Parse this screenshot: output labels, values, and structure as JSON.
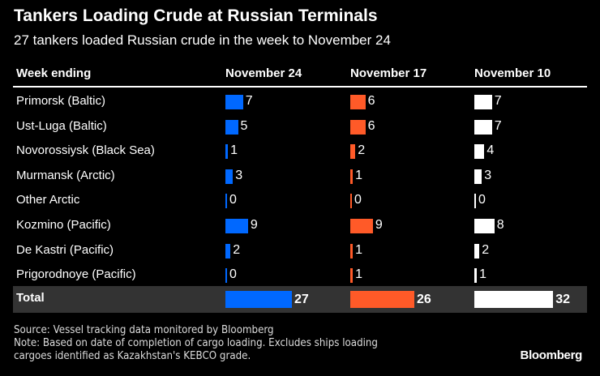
{
  "chart_data": {
    "type": "table",
    "title": "Tankers Loading Crude at Russian Terminals",
    "subtitle": "27 tankers loaded Russian crude in the week to November 24",
    "row_header": "Week ending",
    "columns": [
      {
        "name": "November 24",
        "color": "#0068ff",
        "values": [
          7,
          5,
          1,
          3,
          0,
          9,
          2,
          0
        ],
        "total": 27
      },
      {
        "name": "November 17",
        "color": "#ff5a28",
        "values": [
          6,
          6,
          2,
          1,
          0,
          9,
          1,
          1
        ],
        "total": 26
      },
      {
        "name": "November 10",
        "color": "#ffffff",
        "values": [
          7,
          7,
          4,
          3,
          0,
          8,
          2,
          1
        ],
        "total": 32
      }
    ],
    "rows": [
      "Primorsk (Baltic)",
      "Ust-Luga (Baltic)",
      "Novorossiysk (Black Sea)",
      "Murmansk (Arctic)",
      "Other Arctic",
      "Kozmino (Pacific)",
      "De Kastri (Pacific)",
      "Prigorodnoye (Pacific)"
    ],
    "total_label": "Total"
  },
  "footer": {
    "source": "Source: Vessel tracking data monitored by Bloomberg",
    "note_line1": "Note: Based on date of completion of cargo loading. Excludes ships loading",
    "note_line2": "cargoes identified as Kazakhstan's KEBCO grade.",
    "brand": "Bloomberg"
  }
}
